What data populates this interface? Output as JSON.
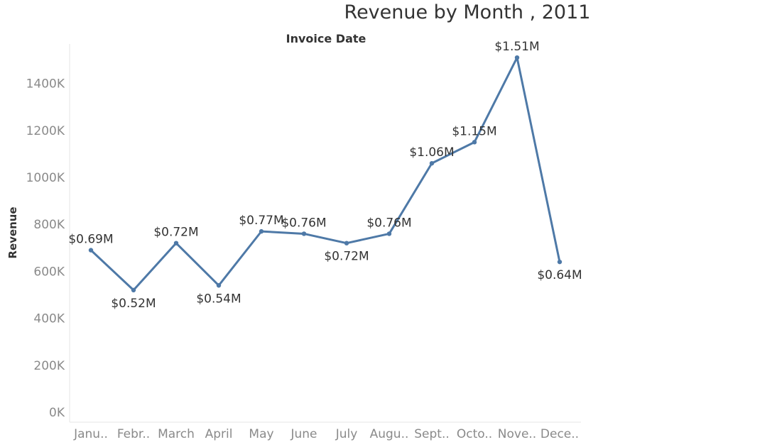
{
  "chart_data": {
    "type": "line",
    "title": "Revenue by Month , 2011",
    "subtitle": "Invoice Date",
    "xlabel": "",
    "ylabel": "Revenue",
    "categories": [
      "Janu..",
      "Febr..",
      "March",
      "April",
      "May",
      "June",
      "July",
      "Augu..",
      "Sept..",
      "Octo..",
      "Nove..",
      "Dece.."
    ],
    "series": [
      {
        "values": [
          690000,
          520000,
          720000,
          540000,
          770000,
          760000,
          720000,
          760000,
          1060000,
          1150000,
          1510000,
          640000
        ],
        "data_labels": [
          "$0.69M",
          "$0.52M",
          "$0.72M",
          "$0.54M",
          "$0.77M",
          "$0.76M",
          "$0.72M",
          "$0.76M",
          "$1.06M",
          "$1.15M",
          "$1.51M",
          "$0.64M"
        ],
        "color": "#4e79a7"
      }
    ],
    "yticks": [
      0,
      200000,
      400000,
      600000,
      800000,
      1000000,
      1200000,
      1400000
    ],
    "ytick_labels": [
      "0K",
      "200K",
      "400K",
      "600K",
      "800K",
      "1000K",
      "1200K",
      "1400K"
    ],
    "ylim": [
      0,
      1560000
    ],
    "grid": false,
    "legend": "none"
  }
}
